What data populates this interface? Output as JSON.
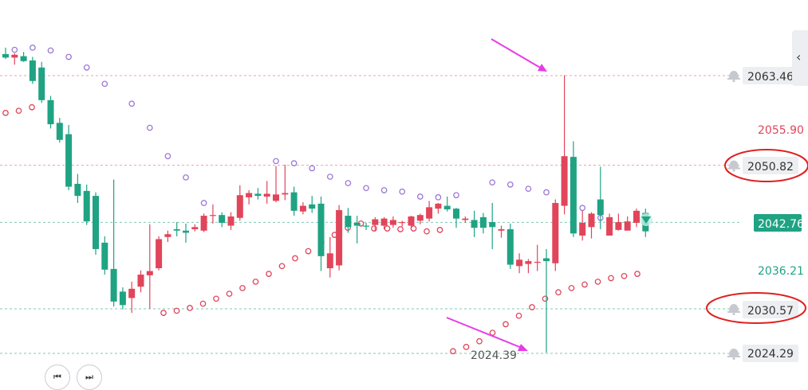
{
  "chart_data": {
    "type": "candlestick",
    "ylim": [
      2020.5,
      2069.5
    ],
    "price_labels": {
      "high_line": "2063.46",
      "upper_ref": "2055.90",
      "resistance": "2050.82",
      "current": "2042.76",
      "lower_ref": "2036.21",
      "support": "2030.57",
      "low_line": "2024.29",
      "low_marker": "2024.39"
    },
    "levels": [
      {
        "key": "high_line",
        "value": 2063.46,
        "color": "#f0a0a8",
        "style": "dashed",
        "alarm": true
      },
      {
        "key": "resistance",
        "value": 2050.82,
        "color": "#f0a0a8",
        "style": "dashed",
        "alarm": true
      },
      {
        "key": "current",
        "value": 2042.76,
        "color": "#7fc9b4",
        "style": "dashed",
        "alarm": false
      },
      {
        "key": "support",
        "value": 2030.57,
        "color": "#7fc9b4",
        "style": "dashed",
        "alarm": true
      },
      {
        "key": "low_line",
        "value": 2024.29,
        "color": "#7fc9b4",
        "style": "dashed",
        "alarm": true
      }
    ],
    "colors": {
      "up": "#e1455a",
      "down": "#1fa383",
      "psar_upper": "#9b78d6",
      "psar_lower": "#e1455a"
    },
    "candles": [
      [
        2066.5,
        2067.4,
        2065.8,
        2066.0
      ],
      [
        2066.0,
        2066.6,
        2065.0,
        2066.4
      ],
      [
        2066.2,
        2066.8,
        2065.4,
        2065.5
      ],
      [
        2065.6,
        2066.1,
        2062.3,
        2062.7
      ],
      [
        2064.6,
        2065.4,
        2059.6,
        2060.0
      ],
      [
        2060.0,
        2060.6,
        2056.0,
        2056.6
      ],
      [
        2056.8,
        2057.5,
        2054.0,
        2054.4
      ],
      [
        2055.2,
        2056.5,
        2047.3,
        2047.8
      ],
      [
        2048.2,
        2049.6,
        2045.5,
        2046.5
      ],
      [
        2047.2,
        2048.1,
        2042.4,
        2042.9
      ],
      [
        2046.5,
        2047.0,
        2038.2,
        2039.0
      ],
      [
        2039.9,
        2040.8,
        2035.4,
        2036.1
      ],
      [
        2036.2,
        2048.8,
        2030.9,
        2031.6
      ],
      [
        2033.0,
        2033.6,
        2030.5,
        2031.1
      ],
      [
        2032.1,
        2034.4,
        2030.0,
        2033.4
      ],
      [
        2033.7,
        2036.0,
        2032.9,
        2035.4
      ],
      [
        2035.3,
        2042.5,
        2030.6,
        2035.9
      ],
      [
        2036.3,
        2040.8,
        2036.0,
        2040.4
      ],
      [
        2040.7,
        2041.6,
        2040.0,
        2041.1
      ],
      [
        2041.8,
        2042.8,
        2040.8,
        2041.6
      ],
      [
        2041.6,
        2042.6,
        2039.9,
        2041.3
      ],
      [
        2041.8,
        2042.5,
        2041.5,
        2042.1
      ],
      [
        2041.6,
        2044.0,
        2041.4,
        2043.7
      ],
      [
        2043.7,
        2045.3,
        2042.6,
        2043.8
      ],
      [
        2043.8,
        2044.2,
        2042.1,
        2042.7
      ],
      [
        2042.3,
        2044.2,
        2041.7,
        2043.6
      ],
      [
        2043.4,
        2048.0,
        2043.0,
        2046.6
      ],
      [
        2046.3,
        2047.3,
        2045.3,
        2046.9
      ],
      [
        2046.8,
        2047.6,
        2046.0,
        2046.5
      ],
      [
        2046.4,
        2048.6,
        2045.4,
        2046.8
      ],
      [
        2045.8,
        2050.7,
        2045.6,
        2046.7
      ],
      [
        2046.7,
        2050.9,
        2045.9,
        2046.9
      ],
      [
        2047.0,
        2047.8,
        2043.7,
        2044.4
      ],
      [
        2044.3,
        2045.6,
        2043.9,
        2045.1
      ],
      [
        2045.3,
        2046.5,
        2044.1,
        2044.7
      ],
      [
        2045.4,
        2046.4,
        2035.9,
        2038.0
      ],
      [
        2036.3,
        2040.7,
        2035.0,
        2038.4
      ],
      [
        2036.7,
        2045.2,
        2036.0,
        2044.5
      ],
      [
        2043.7,
        2044.8,
        2041.3,
        2042.1
      ],
      [
        2042.7,
        2043.7,
        2039.8,
        2042.3
      ],
      [
        2042.3,
        2042.7,
        2041.7,
        2042.2
      ],
      [
        2042.4,
        2043.5,
        2041.5,
        2043.2
      ],
      [
        2042.3,
        2043.5,
        2041.8,
        2043.3
      ],
      [
        2042.4,
        2043.6,
        2042.0,
        2043.1
      ],
      [
        2042.7,
        2043.0,
        2042.2,
        2042.8
      ],
      [
        2042.3,
        2043.7,
        2041.9,
        2043.6
      ],
      [
        2043.0,
        2044.0,
        2042.5,
        2043.8
      ],
      [
        2043.3,
        2045.8,
        2042.9,
        2044.9
      ],
      [
        2044.7,
        2045.5,
        2044.0,
        2045.4
      ],
      [
        2045.1,
        2046.4,
        2044.3,
        2044.6
      ],
      [
        2044.7,
        2044.8,
        2042.0,
        2043.3
      ],
      [
        2043.1,
        2043.6,
        2042.7,
        2043.3
      ],
      [
        2043.1,
        2044.4,
        2040.7,
        2042.0
      ],
      [
        2043.5,
        2044.1,
        2041.2,
        2042.0
      ],
      [
        2042.8,
        2045.5,
        2039.0,
        2042.1
      ],
      [
        2041.6,
        2042.3,
        2040.6,
        2041.8
      ],
      [
        2041.8,
        2042.6,
        2036.2,
        2036.8
      ],
      [
        2036.6,
        2038.4,
        2035.6,
        2037.5
      ],
      [
        2036.9,
        2037.6,
        2035.6,
        2037.3
      ],
      [
        2037.1,
        2039.6,
        2035.9,
        2037.2
      ],
      [
        2037.7,
        2039.0,
        2024.4,
        2037.3
      ],
      [
        2037.0,
        2046.0,
        2035.9,
        2045.5
      ],
      [
        2045.1,
        2063.5,
        2043.9,
        2052.1
      ],
      [
        2052.0,
        2054.2,
        2040.7,
        2041.2
      ],
      [
        2040.9,
        2044.4,
        2040.2,
        2042.7
      ],
      [
        2042.1,
        2044.2,
        2040.5,
        2044.0
      ],
      [
        2046.0,
        2050.6,
        2041.8,
        2043.8
      ],
      [
        2040.9,
        2044.0,
        2041.0,
        2043.5
      ],
      [
        2041.7,
        2044.0,
        2041.6,
        2042.8
      ],
      [
        2041.6,
        2043.6,
        2041.9,
        2042.9
      ],
      [
        2042.7,
        2044.7,
        2042.1,
        2044.4
      ],
      [
        2044.1,
        2044.7,
        2040.7,
        2041.5
      ]
    ],
    "psar_upper": [
      [
        1,
        2067.1
      ],
      [
        3,
        2067.4
      ],
      [
        5,
        2067.0
      ],
      [
        7,
        2066.1
      ],
      [
        9,
        2064.6
      ],
      [
        11,
        2062.3
      ],
      [
        14,
        2059.5
      ],
      [
        16,
        2056.1
      ],
      [
        18,
        2052.1
      ],
      [
        20,
        2049.1
      ],
      [
        22,
        2045.5
      ],
      [
        30,
        2051.4
      ],
      [
        32,
        2051.1
      ],
      [
        34,
        2050.4
      ],
      [
        36,
        2049.2
      ],
      [
        38,
        2048.3
      ],
      [
        40,
        2047.6
      ],
      [
        42,
        2047.3
      ],
      [
        44,
        2047.1
      ],
      [
        46,
        2046.4
      ],
      [
        48,
        2046.3
      ],
      [
        50,
        2046.6
      ],
      [
        54,
        2048.4
      ],
      [
        56,
        2048.1
      ],
      [
        58,
        2047.5
      ],
      [
        60,
        2047.0
      ],
      [
        62,
        2046.2
      ],
      [
        64,
        2044.8
      ],
      [
        66,
        2043.4
      ]
    ],
    "psar_lower": [
      [
        0,
        2058.2
      ],
      [
        2,
        2058.5
      ],
      [
        4,
        2059.0
      ],
      [
        24,
        2030.0
      ],
      [
        26,
        2030.3
      ],
      [
        28,
        2030.7
      ],
      [
        30,
        2031.3
      ],
      [
        32,
        2032.0
      ],
      [
        34,
        2032.7
      ],
      [
        36,
        2033.5
      ],
      [
        38,
        2034.4
      ],
      [
        40,
        2035.5
      ],
      [
        42,
        2036.6
      ],
      [
        44,
        2037.7
      ],
      [
        46,
        2038.7
      ],
      [
        48,
        2039.9
      ],
      [
        50,
        2041.0
      ],
      [
        52,
        2042.0
      ],
      [
        54,
        2042.6
      ],
      [
        56,
        2041.9
      ],
      [
        58,
        2041.9
      ],
      [
        60,
        2041.8
      ],
      [
        62,
        2041.9
      ],
      [
        64,
        2041.5
      ],
      [
        66,
        2041.7
      ],
      [
        68,
        2024.6
      ],
      [
        70,
        2025.2
      ],
      [
        72,
        2026.0
      ],
      [
        74,
        2027.2
      ],
      [
        76,
        2028.4
      ],
      [
        78,
        2029.6
      ],
      [
        80,
        2030.8
      ],
      [
        82,
        2032.0
      ],
      [
        84,
        2032.9
      ],
      [
        86,
        2033.5
      ],
      [
        88,
        2034.0
      ],
      [
        90,
        2034.4
      ],
      [
        92,
        2034.9
      ],
      [
        94,
        2035.2
      ],
      [
        96,
        2035.5
      ]
    ]
  },
  "ui": {
    "collapse_glyph": "‹",
    "nav_first": "⏮",
    "nav_next": "⏭"
  }
}
